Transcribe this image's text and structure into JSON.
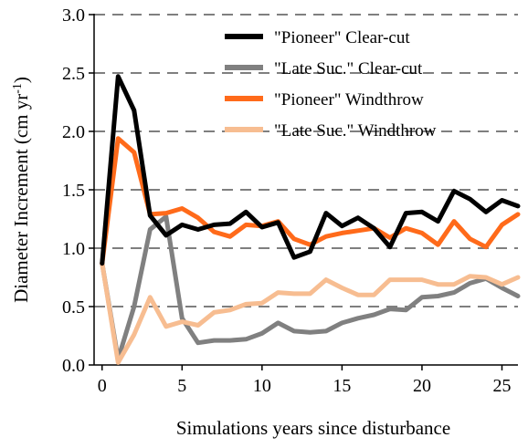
{
  "chart_data": {
    "type": "line",
    "xlabel": "Simulations years since disturbance",
    "ylabel_main": "Diameter Increment (cm yr",
    "ylabel_sup": "-1",
    "ylabel_close": ")",
    "xlim": [
      -0.5,
      26
    ],
    "ylim": [
      0,
      3
    ],
    "x_ticks": [
      0,
      5,
      10,
      15,
      20,
      25
    ],
    "y_ticks": [
      0,
      0.5,
      1,
      1.5,
      2,
      2.5,
      3
    ],
    "x_tick_labels": [
      "0",
      "5",
      "10",
      "15",
      "20",
      "25"
    ],
    "y_tick_labels": [
      "0.0",
      "0.5",
      "1.0",
      "1.5",
      "2.0",
      "2.5",
      "3.0"
    ],
    "grid": "horizontal-dashed",
    "legend_position": "top-right",
    "x": [
      0,
      1,
      2,
      3,
      4,
      5,
      6,
      7,
      8,
      9,
      10,
      11,
      12,
      13,
      14,
      15,
      16,
      17,
      18,
      19,
      20,
      21,
      22,
      23,
      24,
      25,
      26
    ],
    "series": [
      {
        "name": "\"Pioneer\" Clear-cut",
        "color": "#000000",
        "values": [
          0.87,
          2.47,
          2.18,
          1.28,
          1.11,
          1.2,
          1.16,
          1.2,
          1.21,
          1.31,
          1.18,
          1.22,
          0.92,
          0.97,
          1.3,
          1.19,
          1.26,
          1.17,
          1.01,
          1.3,
          1.31,
          1.23,
          1.49,
          1.42,
          1.31,
          1.41,
          1.36
        ]
      },
      {
        "name": "\"Late Suc.\" Clear-cut",
        "color": "#808080",
        "values": [
          0.87,
          0.05,
          0.5,
          1.16,
          1.27,
          0.4,
          0.19,
          0.21,
          0.21,
          0.22,
          0.27,
          0.36,
          0.29,
          0.28,
          0.29,
          0.36,
          0.4,
          0.43,
          0.48,
          0.47,
          0.58,
          0.59,
          0.62,
          0.7,
          0.74,
          0.66,
          0.59
        ]
      },
      {
        "name": "\"Pioneer\" Windthrow",
        "color": "#ff6a1a",
        "values": [
          0.87,
          1.94,
          1.82,
          1.29,
          1.3,
          1.34,
          1.26,
          1.14,
          1.1,
          1.2,
          1.19,
          1.23,
          1.08,
          1.03,
          1.1,
          1.13,
          1.15,
          1.17,
          1.09,
          1.17,
          1.13,
          1.03,
          1.23,
          1.08,
          1.01,
          1.2,
          1.29
        ]
      },
      {
        "name": "\"Late Suc.\" Windthrow",
        "color": "#f7bd91",
        "values": [
          0.87,
          0.02,
          0.26,
          0.58,
          0.33,
          0.37,
          0.34,
          0.45,
          0.47,
          0.52,
          0.53,
          0.62,
          0.61,
          0.61,
          0.73,
          0.66,
          0.6,
          0.6,
          0.73,
          0.73,
          0.73,
          0.69,
          0.69,
          0.76,
          0.75,
          0.69,
          0.75
        ]
      }
    ]
  }
}
